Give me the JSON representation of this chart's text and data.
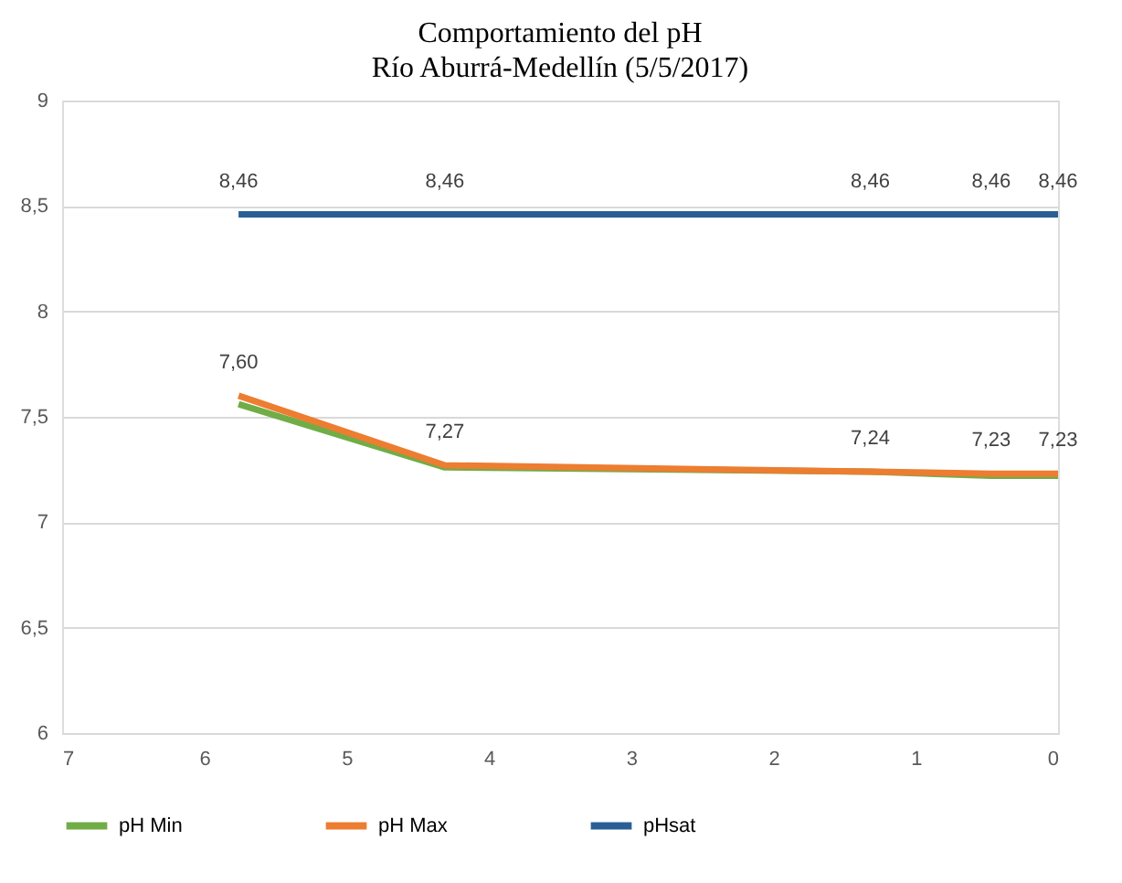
{
  "chart_data": {
    "type": "line",
    "title": "Comportamiento del pH",
    "subtitle": "Río Aburrá-Medellín (5/5/2017)",
    "x": [
      5.76,
      4.31,
      1.32,
      0.47,
      0
    ],
    "series": [
      {
        "name": "pH Min",
        "color": "#70ad47",
        "values": [
          7.56,
          7.26,
          7.24,
          7.22,
          7.22
        ]
      },
      {
        "name": "pH Max",
        "color": "#ed7d31",
        "values": [
          7.6,
          7.27,
          7.24,
          7.23,
          7.23
        ],
        "value_labels": [
          "7,60",
          "7,27",
          "7,24",
          "7,23",
          "7,23"
        ]
      },
      {
        "name": "pHsat",
        "color": "#2a5f96",
        "values": [
          8.46,
          8.46,
          8.46,
          8.46,
          8.46
        ],
        "value_labels": [
          "8,46",
          "8,46",
          "8,46",
          "8,46",
          "8,46"
        ]
      }
    ],
    "xlim": [
      7,
      0
    ],
    "xticks": [
      7,
      6,
      5,
      4,
      3,
      2,
      1,
      0
    ],
    "ylim": [
      6,
      9
    ],
    "yticks": [
      6,
      {
        "value": 6.5,
        "label": "6,5"
      },
      7,
      {
        "value": 7.5,
        "label": "7,5"
      },
      8,
      {
        "value": 8.5,
        "label": "8,5"
      },
      9
    ],
    "grid": "y",
    "legend": "bottom",
    "marker": "none",
    "line_style": "solid"
  }
}
